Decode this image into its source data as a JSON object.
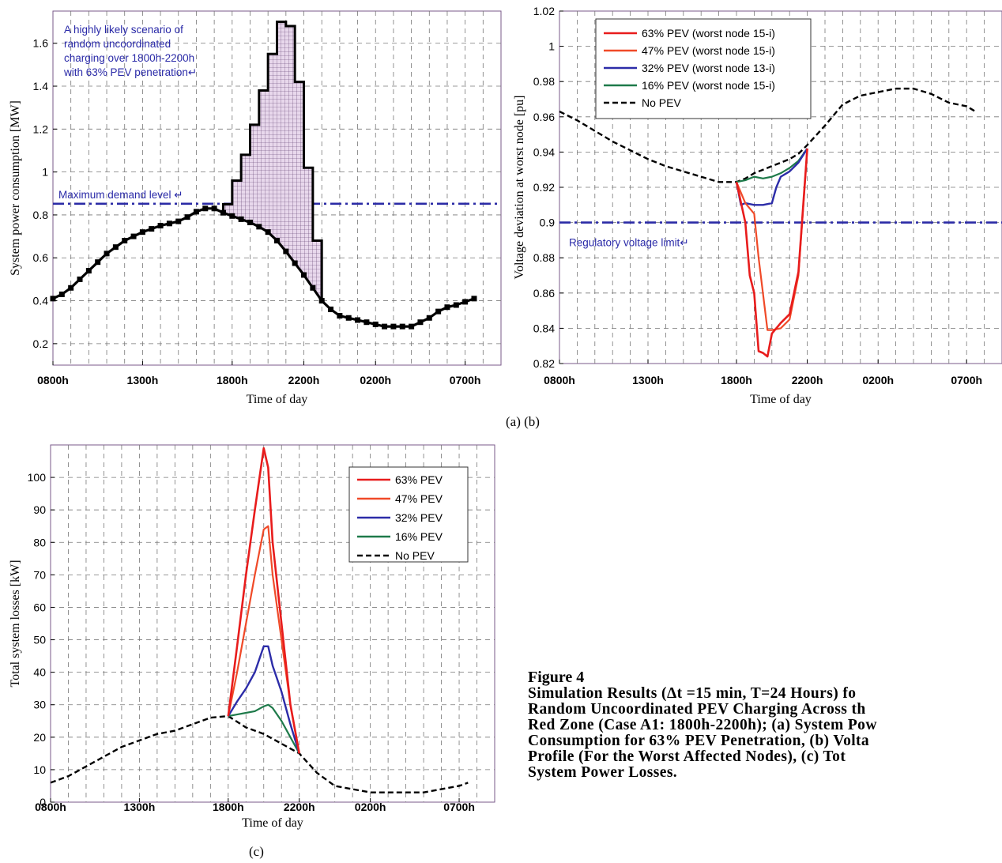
{
  "figure": {
    "label_ab": "(a)  (b)",
    "label_c": "(c)",
    "caption_title": "Figure 4",
    "caption_lines": [
      "Simulation Results (Δt =15 min, T=24 Hours) fo",
      "Random Uncoordinated PEV Charging Across th",
      "Red Zone (Case A1: 1800h-2200h); (a) System Pow",
      "Consumption for 63% PEV Penetration, (b) Volta",
      "Profile (For the Worst Affected Nodes), (c) Tot",
      "System Power Losses."
    ]
  },
  "colors": {
    "red63": "#e81c1c",
    "red47": "#f04a28",
    "blue32": "#2c2ca8",
    "green16": "#1e7a4a",
    "base": "#000000",
    "limit": "#2b2ba6",
    "annotation": "#2a2aa8",
    "grid": "#777777",
    "fill": "#e8d8ec"
  },
  "chart_data": [
    {
      "id": "a",
      "type": "line",
      "xlabel": "Time of day",
      "ylabel": "System power consumption [MW]",
      "x_ticks": [
        "0800h",
        "1300h",
        "1800h",
        "2200h",
        "0200h",
        "0700h"
      ],
      "x_tick_hours": [
        0,
        5,
        10,
        14,
        18,
        23
      ],
      "xlim_hours": [
        0,
        25
      ],
      "ylim": [
        0.1,
        1.75
      ],
      "y_ticks": [
        0.2,
        0.4,
        0.6,
        0.8,
        1,
        1.2,
        1.4,
        1.6
      ],
      "y_tick_labels": [
        "0.2",
        "0.4",
        "0.6",
        "0.8",
        "1",
        "1.2",
        "1.4",
        "1.6"
      ],
      "annotation": [
        "A highly likely scenario of",
        "random uncoordinated",
        "charging over 1800h-2200h",
        "with 63% PEV penetration↵"
      ],
      "limit_label": "Maximum demand level ↵",
      "limit_value": 0.852,
      "series": [
        {
          "key": "baseline",
          "x": [
            0,
            0.5,
            1,
            1.5,
            2,
            2.5,
            3,
            3.5,
            4,
            4.5,
            5,
            5.5,
            6,
            6.5,
            7,
            7.5,
            8,
            8.5,
            9,
            9.5,
            10,
            10.5,
            11,
            11.5,
            12,
            12.5,
            13,
            13.5,
            14,
            14.5,
            15,
            15.5,
            16,
            16.5,
            17,
            17.5,
            18,
            18.5,
            19,
            19.5,
            20,
            20.5,
            21,
            21.5,
            22,
            22.5,
            23,
            23.5
          ],
          "y": [
            0.41,
            0.43,
            0.46,
            0.5,
            0.54,
            0.58,
            0.62,
            0.65,
            0.68,
            0.7,
            0.72,
            0.735,
            0.75,
            0.76,
            0.77,
            0.79,
            0.815,
            0.83,
            0.83,
            0.81,
            0.795,
            0.78,
            0.765,
            0.745,
            0.72,
            0.68,
            0.63,
            0.575,
            0.52,
            0.46,
            0.4,
            0.36,
            0.33,
            0.32,
            0.31,
            0.3,
            0.29,
            0.28,
            0.28,
            0.28,
            0.28,
            0.3,
            0.32,
            0.35,
            0.37,
            0.38,
            0.395,
            0.41
          ]
        },
        {
          "key": "pev63",
          "x": [
            9.5,
            10,
            10.5,
            11,
            11.5,
            12,
            12.5,
            13,
            13.5,
            14,
            14.5
          ],
          "y": [
            0.85,
            0.96,
            1.08,
            1.22,
            1.38,
            1.55,
            1.7,
            1.68,
            1.42,
            1.02,
            0.68
          ]
        }
      ]
    },
    {
      "id": "b",
      "type": "line",
      "xlabel": "Time of day",
      "ylabel": "Voltage deviation at worst node [pu]",
      "x_ticks": [
        "0800h",
        "1300h",
        "1800h",
        "2200h",
        "0200h",
        "0700h"
      ],
      "x_tick_hours": [
        0,
        5,
        10,
        14,
        18,
        23
      ],
      "xlim_hours": [
        0,
        25
      ],
      "ylim": [
        0.82,
        1.02
      ],
      "y_ticks": [
        0.82,
        0.84,
        0.86,
        0.88,
        0.9,
        0.92,
        0.94,
        0.96,
        0.98,
        1,
        1.02
      ],
      "y_tick_labels": [
        "0.82",
        "0.84",
        "0.86",
        "0.88",
        "0.9",
        "0.92",
        "0.94",
        "0.96",
        "0.98",
        "1",
        "1.02"
      ],
      "limit_label": "Regulatory voltage limit↵",
      "limit_value": 0.9,
      "legend": [
        "63% PEV (worst node 15-i)",
        "47% PEV (worst node 15-i)",
        "32% PEV (worst node 13-i)",
        "16% PEV (worst node 15-i)",
        "No PEV"
      ],
      "series": [
        {
          "key": "nopev",
          "x": [
            0,
            1,
            2,
            3,
            4,
            5,
            6,
            7,
            8,
            9,
            10,
            10.5,
            11,
            11.5,
            12,
            12.5,
            13,
            13.5,
            14,
            15,
            16,
            17,
            18,
            19,
            20,
            21,
            22,
            23,
            23.5
          ],
          "y": [
            0.963,
            0.958,
            0.952,
            0.946,
            0.941,
            0.936,
            0.932,
            0.929,
            0.926,
            0.923,
            0.923,
            0.925,
            0.928,
            0.93,
            0.932,
            0.934,
            0.936,
            0.939,
            0.944,
            0.955,
            0.967,
            0.972,
            0.974,
            0.976,
            0.976,
            0.973,
            0.968,
            0.966,
            0.963
          ]
        },
        {
          "key": "pev16",
          "x": [
            10,
            10.5,
            11,
            11.5,
            12,
            12.5,
            13,
            13.5,
            14
          ],
          "y": [
            0.923,
            0.924,
            0.926,
            0.925,
            0.926,
            0.928,
            0.931,
            0.935,
            0.942
          ]
        },
        {
          "key": "pev32",
          "x": [
            10,
            10.25,
            10.5,
            11,
            11.5,
            12,
            12.25,
            12.5,
            13,
            13.5,
            14
          ],
          "y": [
            0.923,
            0.91,
            0.911,
            0.91,
            0.91,
            0.911,
            0.92,
            0.926,
            0.929,
            0.934,
            0.942
          ]
        },
        {
          "key": "pev47",
          "x": [
            10,
            10.5,
            11,
            11.25,
            11.75,
            12,
            12.5,
            13,
            13.5,
            14
          ],
          "y": [
            0.923,
            0.911,
            0.905,
            0.88,
            0.839,
            0.839,
            0.84,
            0.845,
            0.87,
            0.942
          ]
        },
        {
          "key": "pev63",
          "x": [
            10,
            10.5,
            10.75,
            11,
            11.25,
            11.5,
            11.75,
            12,
            12.5,
            13,
            13.5,
            14
          ],
          "y": [
            0.923,
            0.9,
            0.87,
            0.86,
            0.827,
            0.826,
            0.824,
            0.837,
            0.843,
            0.848,
            0.872,
            0.942
          ]
        }
      ]
    },
    {
      "id": "c",
      "type": "line",
      "xlabel": "Time of day",
      "ylabel": "Total system losses [kW]",
      "x_ticks": [
        "0800h",
        "1300h",
        "1800h",
        "2200h",
        "0200h",
        "0700h"
      ],
      "x_tick_hours": [
        0,
        5,
        10,
        14,
        18,
        23
      ],
      "xlim_hours": [
        0,
        25
      ],
      "ylim": [
        0,
        110
      ],
      "y_ticks": [
        0,
        10,
        20,
        30,
        40,
        50,
        60,
        70,
        80,
        90,
        100
      ],
      "y_tick_labels": [
        "0",
        "10",
        "20",
        "30",
        "40",
        "50",
        "60",
        "70",
        "80",
        "90",
        "100"
      ],
      "legend": [
        "63% PEV",
        "47% PEV",
        "32% PEV",
        "16% PEV",
        "No PEV"
      ],
      "series": [
        {
          "key": "nopev",
          "x": [
            0,
            1,
            2,
            3,
            4,
            5,
            6,
            7,
            8,
            9,
            10,
            11,
            12,
            13,
            14,
            15,
            16,
            17,
            18,
            19,
            20,
            21,
            22,
            23,
            23.5
          ],
          "y": [
            6,
            8,
            11,
            14,
            17,
            19,
            21,
            22,
            24,
            26,
            26.5,
            23,
            21,
            18,
            15,
            9,
            5,
            4,
            3,
            3,
            3,
            3,
            4,
            5,
            6
          ]
        },
        {
          "key": "pev16",
          "x": [
            10,
            10.5,
            11,
            11.5,
            12,
            12.25,
            12.5,
            13,
            13.5,
            14
          ],
          "y": [
            26.5,
            27,
            27.5,
            28,
            29.5,
            30,
            29,
            25,
            20,
            15
          ]
        },
        {
          "key": "pev32",
          "x": [
            10,
            10.5,
            11,
            11.5,
            12,
            12.25,
            12.5,
            13,
            13.5,
            14
          ],
          "y": [
            26.5,
            31,
            35,
            40,
            48,
            48,
            42,
            34,
            24,
            15
          ]
        },
        {
          "key": "pev47",
          "x": [
            10,
            10.5,
            11,
            11.5,
            12,
            12.25,
            12.5,
            13,
            13.5,
            14
          ],
          "y": [
            26.5,
            40,
            55,
            70,
            84,
            85,
            70,
            50,
            30,
            15
          ]
        },
        {
          "key": "pev63",
          "x": [
            10,
            10.5,
            11,
            11.5,
            12,
            12.25,
            12.5,
            13,
            13.5,
            14
          ],
          "y": [
            26.5,
            48,
            70,
            90,
            109,
            103,
            80,
            55,
            30,
            15
          ]
        }
      ]
    }
  ]
}
